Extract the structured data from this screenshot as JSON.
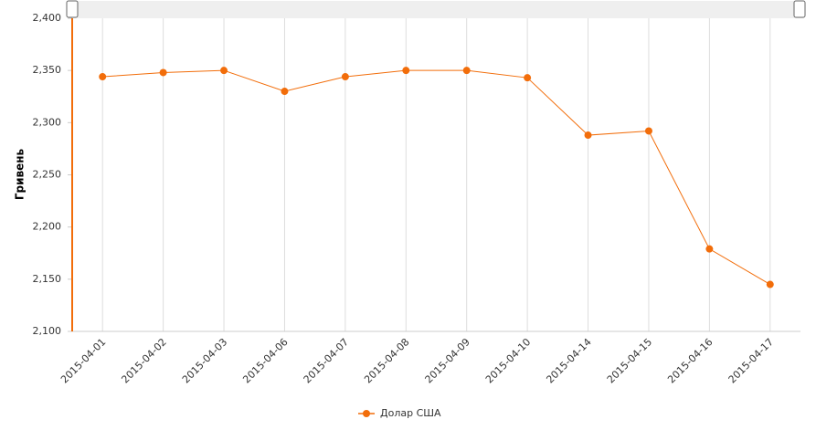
{
  "chart_data": {
    "type": "line",
    "y_label": "Гривень",
    "categories": [
      "2015-04-01",
      "2015-04-02",
      "2015-04-03",
      "2015-04-06",
      "2015-04-07",
      "2015-04-08",
      "2015-04-09",
      "2015-04-10",
      "2015-04-14",
      "2015-04-15",
      "2015-04-16",
      "2015-04-17"
    ],
    "series": [
      {
        "name": "Долар США",
        "color": "#f26d0a",
        "values": [
          2344,
          2348,
          2350,
          2330,
          2344,
          2350,
          2350,
          2343,
          2288,
          2292,
          2179,
          2145
        ]
      }
    ],
    "ylim": [
      2100,
      2400
    ],
    "yticks": [
      {
        "value": 2100,
        "label": "2,100"
      },
      {
        "value": 2150,
        "label": "2,150"
      },
      {
        "value": 2200,
        "label": "2,200"
      },
      {
        "value": 2250,
        "label": "2,250"
      },
      {
        "value": 2300,
        "label": "2,300"
      },
      {
        "value": 2350,
        "label": "2,350"
      },
      {
        "value": 2400,
        "label": "2,400"
      }
    ],
    "x_grid": true,
    "legend": "bottom"
  }
}
